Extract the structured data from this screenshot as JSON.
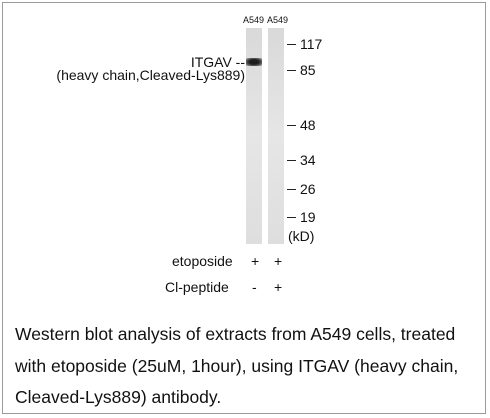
{
  "lanes": [
    "A549",
    "A549"
  ],
  "band_label": {
    "name": "ITGAV --",
    "detail": "(heavy chain,Cleaved-Lys889)"
  },
  "markers": [
    117,
    85,
    48,
    34,
    26,
    19
  ],
  "unit": "(kD)",
  "conditions": [
    {
      "name": "etoposide",
      "values": [
        "+",
        "+"
      ]
    },
    {
      "name": "Cl-peptide",
      "values": [
        "-",
        "+"
      ]
    }
  ],
  "caption": [
    "Western blot analysis of extracts from A549 cells, treated",
    "with etoposide (25uM, 1hour), using ITGAV (heavy chain,",
    "Cleaved-Lys889) antibody."
  ]
}
